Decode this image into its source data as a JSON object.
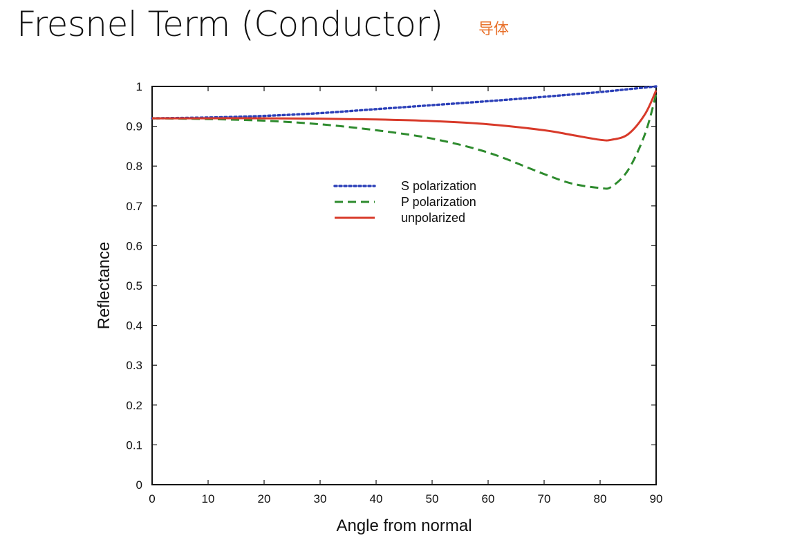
{
  "slide": {
    "title": "Fresnel Term (Conductor)",
    "subtitle": "导体",
    "subtitle_color": "#e8702a"
  },
  "chart_data": {
    "type": "line",
    "title": "",
    "xlabel": "Angle from normal",
    "ylabel": "Reflectance",
    "xlim": [
      0,
      90
    ],
    "ylim": [
      0,
      1
    ],
    "xticks": [
      0,
      10,
      20,
      30,
      40,
      50,
      60,
      70,
      80,
      90
    ],
    "yticks": [
      0,
      0.1,
      0.2,
      0.3,
      0.4,
      0.5,
      0.6,
      0.7,
      0.8,
      0.9,
      1
    ],
    "ytick_labels": [
      "0",
      "0.1",
      "0.2",
      "0.3",
      "0.4",
      "0.5",
      "0.6",
      "0.7",
      "0.8",
      "0.9",
      "1"
    ],
    "legend_position": "top-center",
    "series": [
      {
        "name": "S polarization",
        "style": "dotted",
        "color": "#2b3fb8",
        "x": [
          0,
          10,
          20,
          30,
          40,
          50,
          60,
          70,
          80,
          85,
          90
        ],
        "y": [
          0.92,
          0.922,
          0.926,
          0.933,
          0.943,
          0.953,
          0.963,
          0.974,
          0.986,
          0.993,
          1.0
        ]
      },
      {
        "name": "P polarization",
        "style": "dashed",
        "color": "#2e8b2e",
        "x": [
          0,
          10,
          20,
          30,
          40,
          50,
          60,
          70,
          75,
          80,
          82,
          85,
          88,
          90
        ],
        "y": [
          0.92,
          0.918,
          0.914,
          0.905,
          0.89,
          0.869,
          0.834,
          0.78,
          0.756,
          0.745,
          0.748,
          0.79,
          0.88,
          0.98
        ]
      },
      {
        "name": "unpolarized",
        "style": "solid",
        "color": "#d83a2a",
        "x": [
          0,
          10,
          20,
          30,
          40,
          50,
          60,
          70,
          75,
          80,
          82,
          85,
          88,
          90
        ],
        "y": [
          0.92,
          0.92,
          0.92,
          0.919,
          0.917,
          0.913,
          0.905,
          0.89,
          0.878,
          0.866,
          0.866,
          0.88,
          0.93,
          0.99
        ]
      }
    ]
  }
}
